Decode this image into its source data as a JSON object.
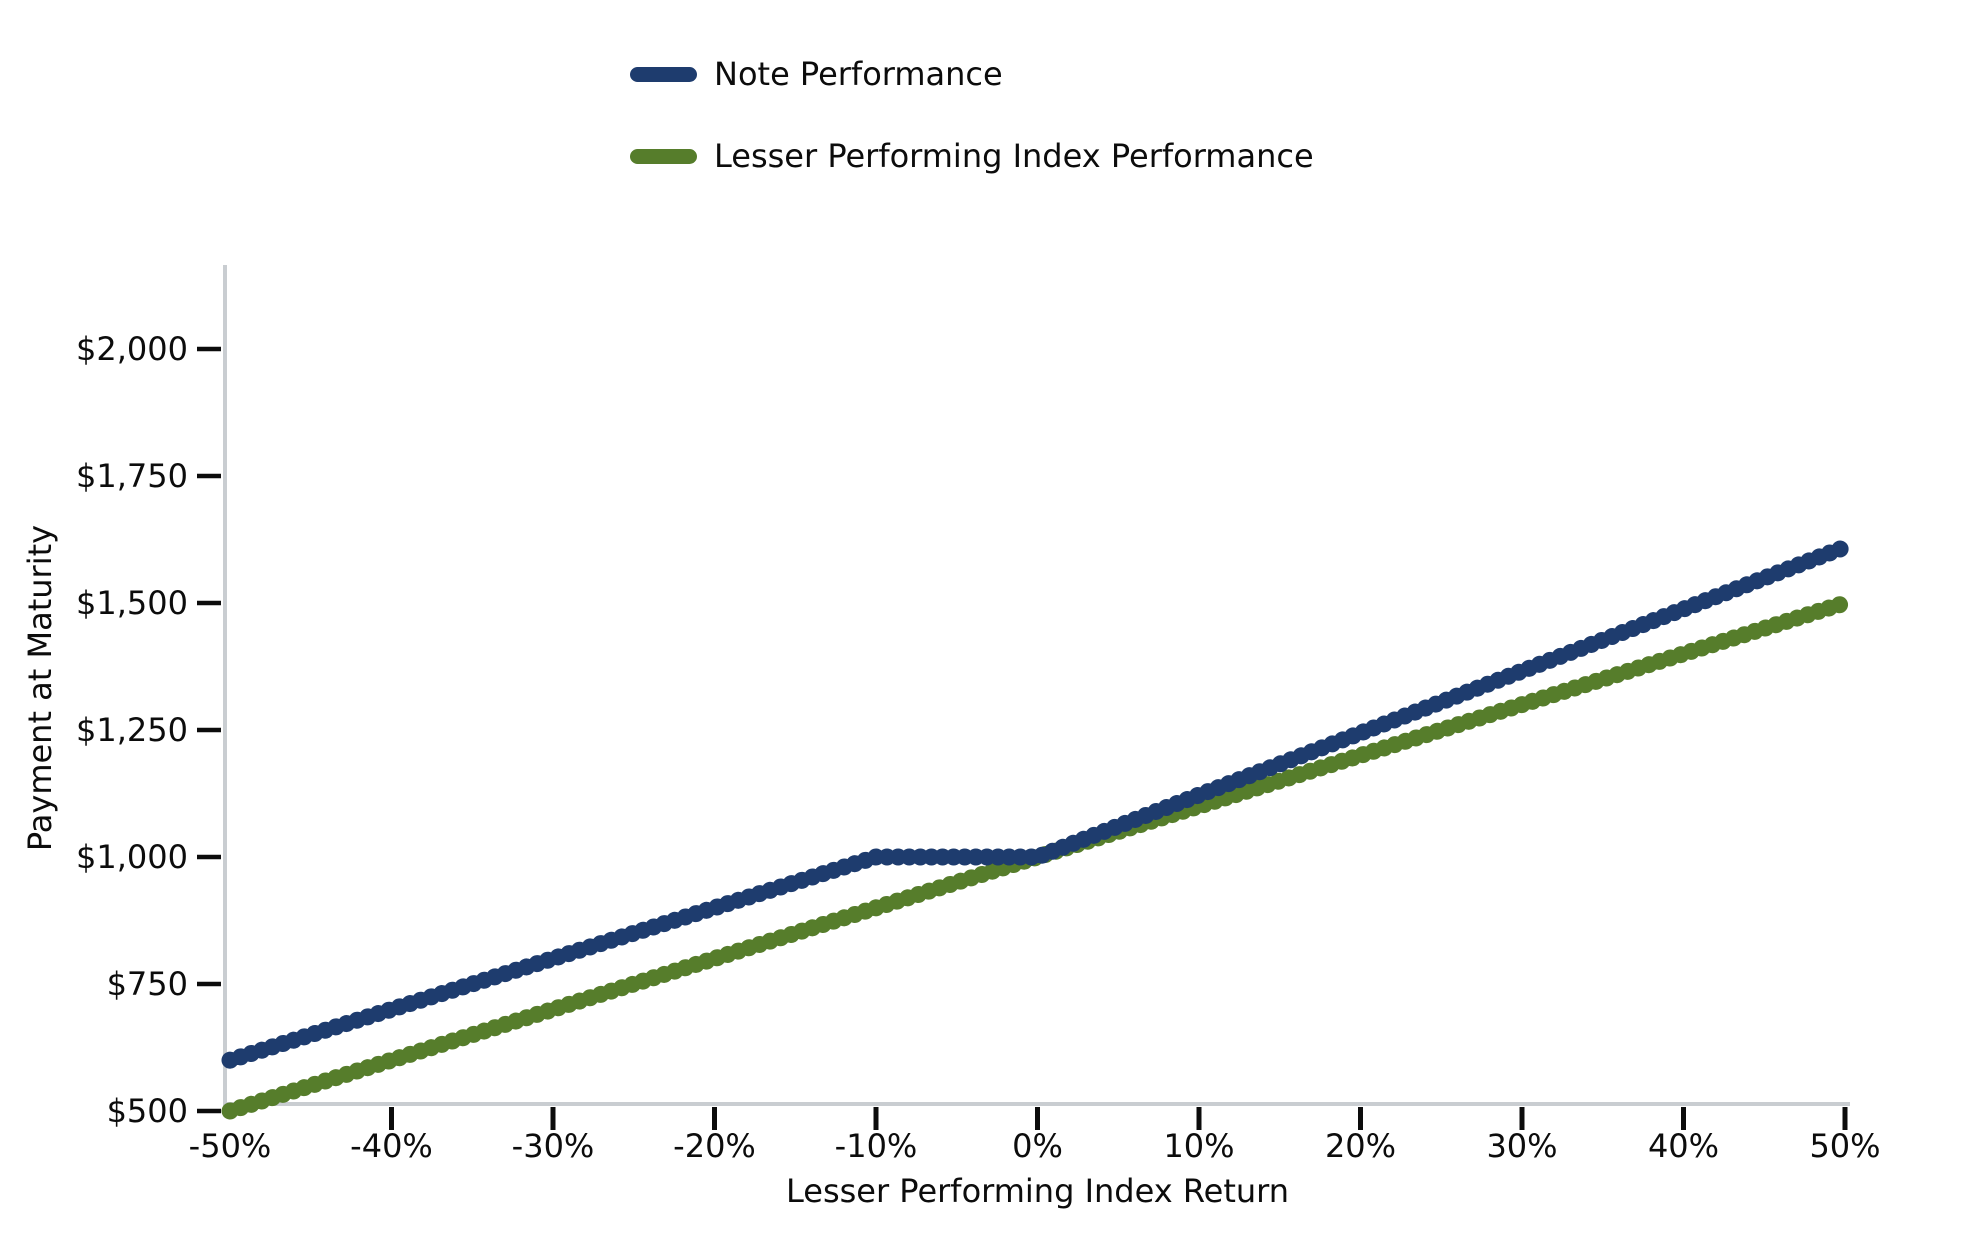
{
  "page": {
    "background_color": "#ffffff"
  },
  "chart_data": {
    "type": "line",
    "title": "",
    "xlabel": "Lesser Performing Index Return",
    "ylabel": "Payment at Maturity",
    "grid": false,
    "legend_position": "top-left",
    "line_style": "overlapping-dot-markers",
    "x_axis": {
      "min": -50,
      "max": 50,
      "unit": "%",
      "tick_values": [
        -50,
        -40,
        -30,
        -20,
        -10,
        0,
        10,
        20,
        30,
        40,
        50
      ],
      "tick_labels": [
        "-50%",
        "-40%",
        "-30%",
        "-20%",
        "-10%",
        "0%",
        "10%",
        "20%",
        "30%",
        "40%",
        "50%"
      ]
    },
    "y_axis": {
      "min": 500,
      "max": 2000,
      "unit": "$",
      "tick_values": [
        500,
        750,
        1000,
        1250,
        1500,
        1750,
        2000
      ],
      "tick_labels": [
        "$500",
        "$750",
        "$1,000",
        "$1,250",
        "$1,500",
        "$1,750",
        "$2,000"
      ]
    },
    "series": [
      {
        "name": "Note Performance",
        "color": "#1e3c6e",
        "points": [
          [
            -50,
            600
          ],
          [
            -10,
            1000
          ],
          [
            0,
            1000
          ],
          [
            50,
            1610
          ]
        ]
      },
      {
        "name": "Lesser Performing Index Performance",
        "color": "#567d2b",
        "points": [
          [
            -50,
            500
          ],
          [
            50,
            1500
          ]
        ]
      }
    ],
    "axis_color": "#c9cdd1",
    "tick_color": "#0c0c0c",
    "text_color": "#0c0c0c"
  }
}
